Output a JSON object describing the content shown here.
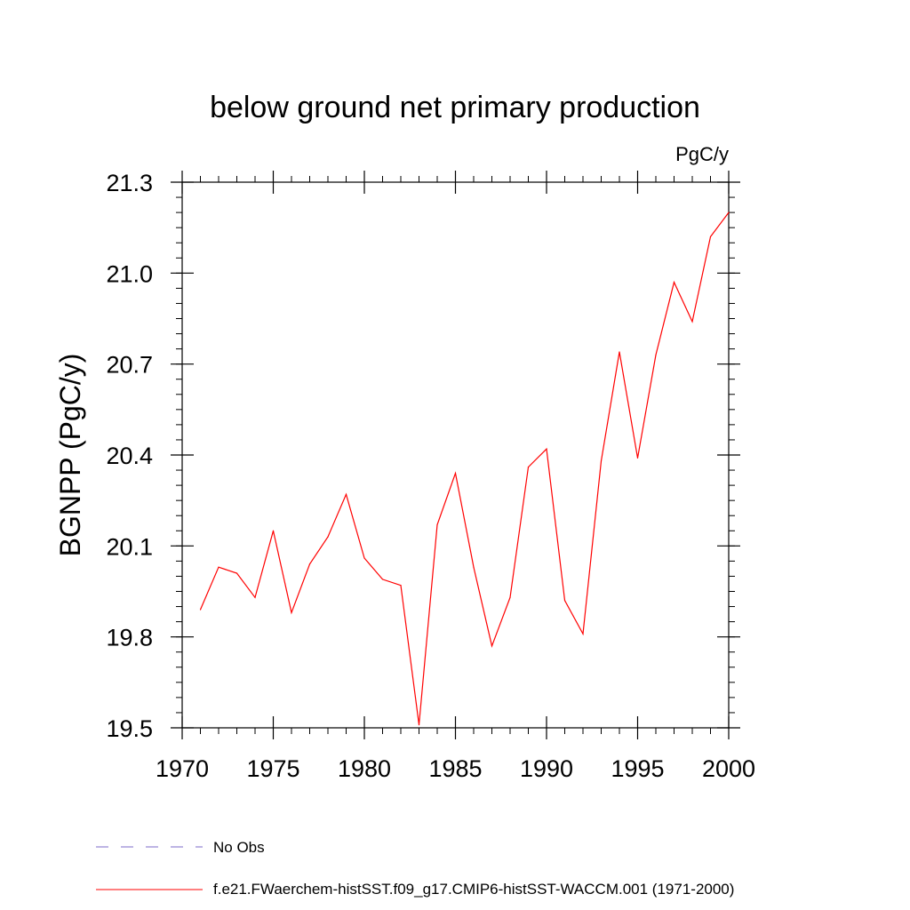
{
  "chart_data": {
    "type": "line",
    "title": "below ground net primary production",
    "units_label": "PgC/y",
    "ylabel": "BGNPP  (PgC/y)",
    "xlabel": "",
    "xlim": [
      1970,
      2000
    ],
    "ylim": [
      19.5,
      21.3
    ],
    "x_ticks": [
      1970,
      1975,
      1980,
      1985,
      1990,
      1995,
      2000
    ],
    "y_ticks": [
      19.5,
      19.8,
      20.1,
      20.4,
      20.7,
      21.0,
      21.3
    ],
    "y_tick_labels": [
      "19.5",
      "19.8",
      "20.1",
      "20.4",
      "20.7",
      "21.0",
      "21.3"
    ],
    "x_minor_step": 1,
    "y_minor_step": 0.05,
    "grid": false,
    "legend_position": "bottom",
    "series": [
      {
        "name": "f.e21.FWaerchem-histSST.f09_g17.CMIP6-histSST-WACCM.001 (1971-2000)",
        "color": "#ff0000",
        "style": "solid",
        "x": [
          1971,
          1972,
          1973,
          1974,
          1975,
          1976,
          1977,
          1978,
          1979,
          1980,
          1981,
          1982,
          1983,
          1984,
          1985,
          1986,
          1987,
          1988,
          1989,
          1990,
          1991,
          1992,
          1993,
          1994,
          1995,
          1996,
          1997,
          1998,
          1999,
          2000
        ],
        "y": [
          19.89,
          20.03,
          20.01,
          19.93,
          20.15,
          19.88,
          20.04,
          20.13,
          20.27,
          20.06,
          19.99,
          19.97,
          19.51,
          20.17,
          20.34,
          20.03,
          19.77,
          19.93,
          20.36,
          20.42,
          19.92,
          19.81,
          20.38,
          20.74,
          20.39,
          20.73,
          20.97,
          20.84,
          21.12,
          21.2
        ]
      }
    ],
    "legend": [
      {
        "label": "No Obs",
        "color": "#7b68c9",
        "style": "dashed"
      },
      {
        "label": "f.e21.FWaerchem-histSST.f09_g17.CMIP6-histSST-WACCM.001 (1971-2000)",
        "color": "#ff0000",
        "style": "solid"
      }
    ]
  }
}
